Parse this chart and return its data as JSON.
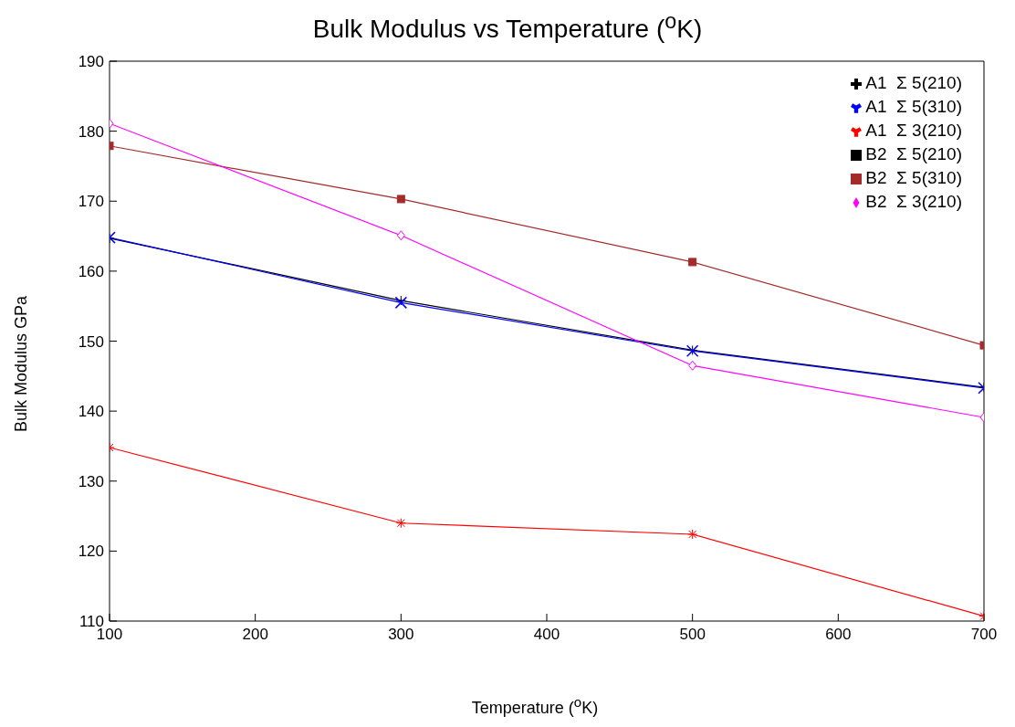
{
  "chart_data": {
    "type": "line",
    "title": "Bulk Modulus vs Temperature ($^{o}$K)",
    "xlabel": "Temperature ($^{o}$K)",
    "ylabel": "Bulk Modulus GPa",
    "x": [
      100,
      300,
      500,
      700
    ],
    "series": [
      {
        "name": "A1  Σ 5(210)",
        "color": "#000000",
        "marker": "plus",
        "values": [
          164.7,
          155.8,
          148.7,
          143.4
        ]
      },
      {
        "name": "A1  Σ 5(310)",
        "color": "#0000ff",
        "marker": "cross",
        "values": [
          164.8,
          155.5,
          148.6,
          143.3
        ]
      },
      {
        "name": "A1  Σ 3(210)",
        "color": "#ff0000",
        "marker": "cross",
        "values": [
          134.8,
          124.0,
          122.4,
          110.7
        ]
      },
      {
        "name": "B2  Σ 5(210)",
        "color": "#000000",
        "marker": "square",
        "values": [
          null,
          null,
          null,
          null
        ]
      },
      {
        "name": "B2  Σ 5(310)",
        "color": "#a52a2a",
        "marker": "square",
        "values": [
          177.9,
          170.3,
          161.3,
          149.4
        ]
      },
      {
        "name": "B2  Σ 3(210)",
        "color": "#ff00ff",
        "marker": "diamond",
        "values": [
          181.1,
          165.1,
          146.5,
          139.1
        ]
      }
    ],
    "xlim": [
      100,
      700
    ],
    "xticks": [
      100,
      200,
      300,
      400,
      500,
      600,
      700
    ],
    "ylim": [
      110,
      190
    ],
    "yticks": [
      110,
      120,
      130,
      140,
      150,
      160,
      170,
      180,
      190
    ],
    "grid": false,
    "legend": "top right",
    "line_style": "solid"
  }
}
